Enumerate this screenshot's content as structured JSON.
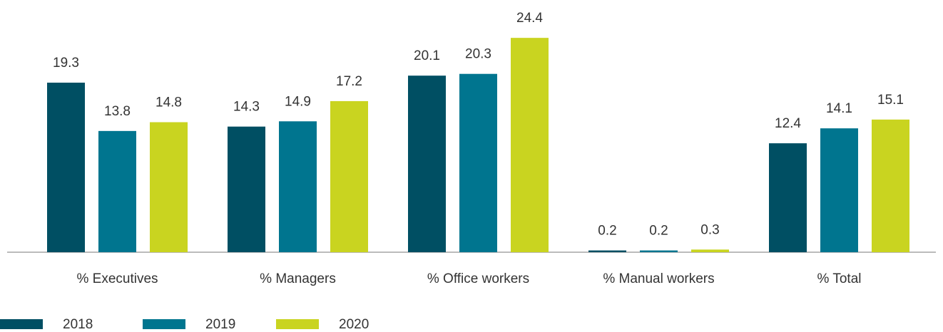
{
  "chart_data": {
    "type": "bar",
    "categories": [
      "% Executives",
      "% Managers",
      "% Office workers",
      "% Manual workers",
      "% Total"
    ],
    "series": [
      {
        "name": "2018",
        "color": "#004f63",
        "values": [
          19.3,
          14.3,
          20.1,
          0.2,
          12.4
        ]
      },
      {
        "name": "2019",
        "color": "#00758f",
        "values": [
          13.8,
          14.9,
          20.3,
          0.2,
          14.1
        ]
      },
      {
        "name": "2020",
        "color": "#c9d420",
        "values": [
          14.8,
          17.2,
          24.4,
          0.3,
          15.1
        ]
      }
    ]
  }
}
